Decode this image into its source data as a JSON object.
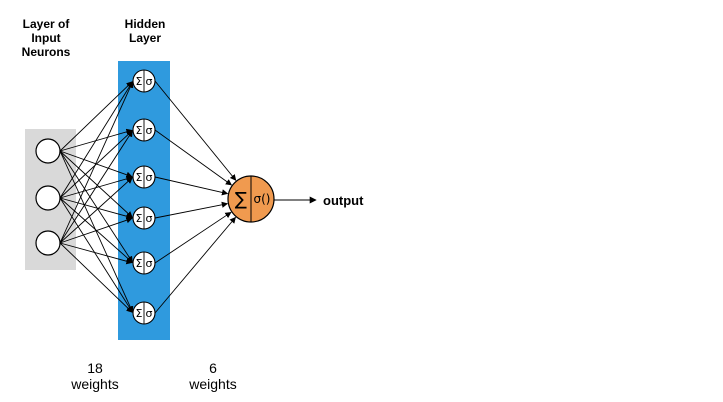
{
  "labels": {
    "input_layer": [
      "Layer of",
      "Input",
      "Neurons"
    ],
    "hidden_layer": [
      "Hidden",
      "Layer"
    ],
    "output": "output"
  },
  "hidden_neuron": {
    "sum_symbol": "Σ",
    "activation_symbol": "σ"
  },
  "output_neuron": {
    "sum_symbol": "∑",
    "activation_symbol": "σ()"
  },
  "weights": {
    "input_to_hidden": {
      "count": "18",
      "unit": "weights"
    },
    "hidden_to_output": {
      "count": "6",
      "unit": "weights"
    }
  },
  "network": {
    "input_neurons": 3,
    "hidden_neurons": 6,
    "output_neurons": 1
  },
  "colors": {
    "input_panel": "#d9d9d9",
    "hidden_panel": "#2f9ade",
    "output_node": "#f09a4f",
    "node_fill": "#ffffff",
    "stroke": "#000000"
  }
}
